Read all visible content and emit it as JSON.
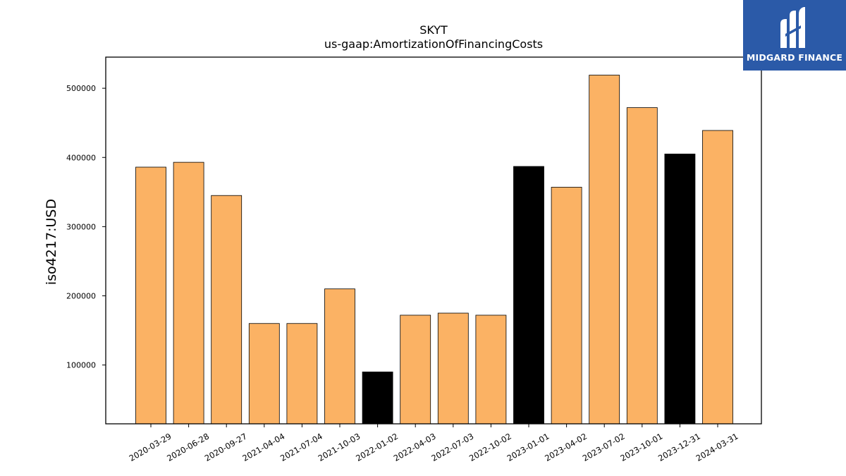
{
  "logo": {
    "text": "MIDGARD FINANCE",
    "icon": "midgard-m-logo",
    "background": "#2b5aa8"
  },
  "chart_data": {
    "type": "bar",
    "title": "SKYT",
    "subtitle": "us-gaap:AmortizationOfFinancingCosts",
    "xlabel": "",
    "ylabel": "iso4217:USD",
    "ylim": [
      15000,
      545000
    ],
    "yticks": [
      100000,
      200000,
      300000,
      400000,
      500000
    ],
    "ytick_labels": [
      "100000",
      "200000",
      "300000",
      "400000",
      "500000"
    ],
    "grid": false,
    "categories": [
      "2020-03-29",
      "2020-06-28",
      "2020-09-27",
      "2021-04-04",
      "2021-07-04",
      "2021-10-03",
      "2022-01-02",
      "2022-04-03",
      "2022-07-03",
      "2022-10-02",
      "2023-01-01",
      "2023-04-02",
      "2023-07-02",
      "2023-10-01",
      "2023-12-31",
      "2024-03-31"
    ],
    "values": [
      386000,
      393000,
      345000,
      160000,
      160000,
      210000,
      90000,
      172000,
      175000,
      172000,
      387000,
      357000,
      519000,
      472000,
      405000,
      439000
    ],
    "bar_colors": [
      "#fbb264",
      "#fbb264",
      "#fbb264",
      "#fbb264",
      "#fbb264",
      "#fbb264",
      "#000000",
      "#fbb264",
      "#fbb264",
      "#fbb264",
      "#000000",
      "#fbb264",
      "#fbb264",
      "#fbb264",
      "#000000",
      "#fbb264"
    ],
    "colors": {
      "primary": "#fbb264",
      "highlight": "#000000"
    }
  }
}
